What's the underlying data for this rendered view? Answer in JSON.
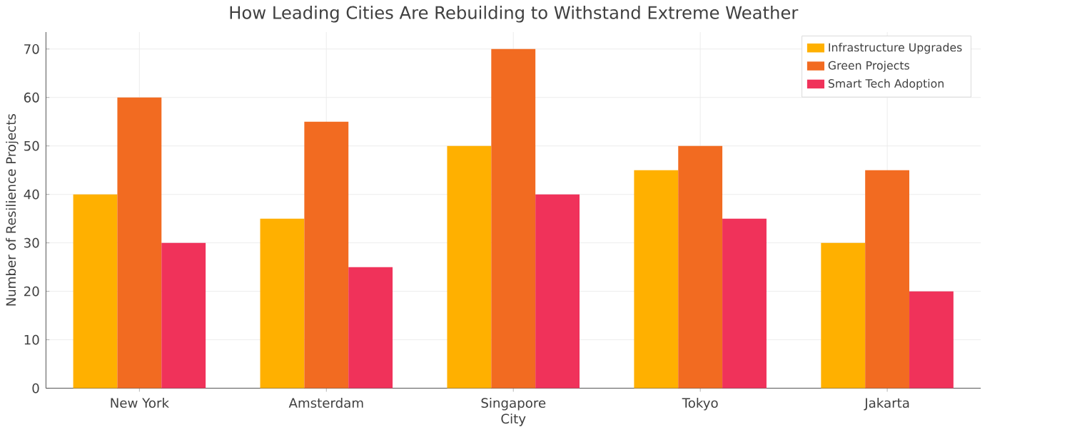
{
  "chart_data": {
    "type": "bar",
    "title": "How Leading Cities Are Rebuilding to Withstand Extreme Weather",
    "xlabel": "City",
    "ylabel": "Number of Resilience Projects",
    "categories": [
      "New York",
      "Amsterdam",
      "Singapore",
      "Tokyo",
      "Jakarta"
    ],
    "series": [
      {
        "name": "Infrastructure Upgrades",
        "color": "#ffb000",
        "values": [
          40,
          35,
          50,
          45,
          30
        ]
      },
      {
        "name": "Green Projects",
        "color": "#f26b21",
        "values": [
          60,
          55,
          70,
          50,
          45
        ]
      },
      {
        "name": "Smart Tech Adoption",
        "color": "#f0325a",
        "values": [
          30,
          25,
          40,
          35,
          20
        ]
      }
    ],
    "ylim": [
      0,
      73.5
    ],
    "yticks": [
      0,
      10,
      20,
      30,
      40,
      50,
      60,
      70
    ],
    "grid": true,
    "legend": "top right"
  }
}
